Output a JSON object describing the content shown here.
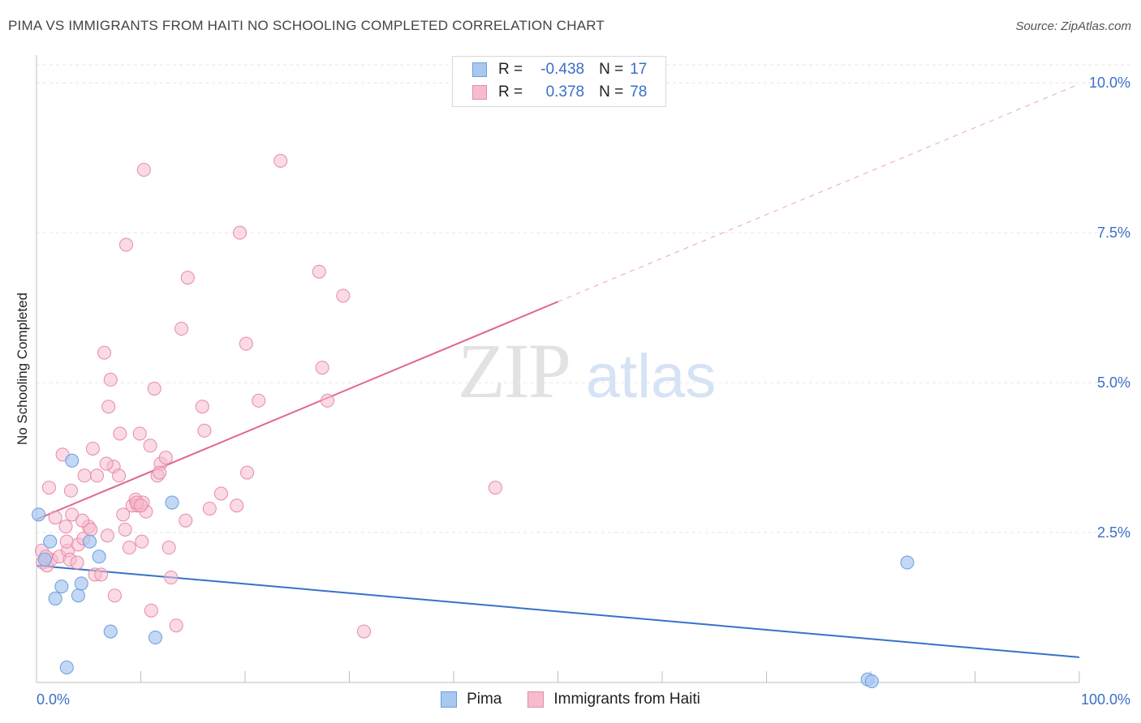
{
  "title": "PIMA VS IMMIGRANTS FROM HAITI NO SCHOOLING COMPLETED CORRELATION CHART",
  "source": "Source: ZipAtlas.com",
  "watermark": {
    "zip": "ZIP",
    "atlas": "atlas"
  },
  "colors": {
    "pima_fill": "#a9c8f0",
    "pima_stroke": "#6a9de0",
    "pima_line": "#3572c9",
    "haiti_fill": "#f6bccd",
    "haiti_stroke": "#e88aa6",
    "haiti_line": "#e06890",
    "grid": "#e6e6e6",
    "tick_label": "#3a6fc9"
  },
  "legend_top": {
    "rows": [
      {
        "r_label": "R =",
        "r_value": "-0.438",
        "n_label": "N =",
        "n_value": "17"
      },
      {
        "r_label": "R =",
        "r_value": "0.378",
        "n_label": "N =",
        "n_value": "78"
      }
    ]
  },
  "chart_data": {
    "type": "scatter",
    "xlabel": "",
    "ylabel": "No Schooling Completed",
    "xlim": [
      0,
      100
    ],
    "ylim": [
      0,
      10.3
    ],
    "x_tick_labels": [
      "0.0%",
      "100.0%"
    ],
    "y_ticks": [
      2.5,
      5.0,
      7.5,
      10.0
    ],
    "y_tick_labels": [
      "2.5%",
      "5.0%",
      "7.5%",
      "10.0%"
    ],
    "grid": "horizontal dashed",
    "legend_placement": "bottom",
    "series": [
      {
        "name": "Pima",
        "points": [
          [
            0.2,
            2.8
          ],
          [
            1.3,
            2.35
          ],
          [
            0.8,
            2.05
          ],
          [
            3.4,
            3.7
          ],
          [
            5.1,
            2.35
          ],
          [
            6.0,
            2.1
          ],
          [
            13.0,
            3.0
          ],
          [
            1.8,
            1.4
          ],
          [
            2.4,
            1.6
          ],
          [
            4.0,
            1.45
          ],
          [
            4.3,
            1.65
          ],
          [
            7.1,
            0.85
          ],
          [
            11.4,
            0.75
          ],
          [
            2.9,
            0.25
          ],
          [
            83.5,
            2.0
          ],
          [
            79.7,
            0.05
          ],
          [
            80.1,
            0.02
          ]
        ],
        "trend": {
          "x0": 0,
          "y0": 1.95,
          "x1": 100,
          "y1": 0.42
        }
      },
      {
        "name": "Immigrants from Haiti",
        "points": [
          [
            0.5,
            2.2
          ],
          [
            0.6,
            2.0
          ],
          [
            1.0,
            1.95
          ],
          [
            1.4,
            2.05
          ],
          [
            0.9,
            2.1
          ],
          [
            1.8,
            2.75
          ],
          [
            2.2,
            2.1
          ],
          [
            2.5,
            3.8
          ],
          [
            1.2,
            3.25
          ],
          [
            3.3,
            3.2
          ],
          [
            2.8,
            2.6
          ],
          [
            3.4,
            2.8
          ],
          [
            3.0,
            2.2
          ],
          [
            2.9,
            2.35
          ],
          [
            3.2,
            2.05
          ],
          [
            4.0,
            2.3
          ],
          [
            3.9,
            2.0
          ],
          [
            4.5,
            2.4
          ],
          [
            5.0,
            2.6
          ],
          [
            4.6,
            3.45
          ],
          [
            5.4,
            3.9
          ],
          [
            5.8,
            3.45
          ],
          [
            5.2,
            2.55
          ],
          [
            5.6,
            1.8
          ],
          [
            6.2,
            1.8
          ],
          [
            6.8,
            2.45
          ],
          [
            6.5,
            5.5
          ],
          [
            7.1,
            5.05
          ],
          [
            7.4,
            3.6
          ],
          [
            7.9,
            3.45
          ],
          [
            6.7,
            3.65
          ],
          [
            6.9,
            4.6
          ],
          [
            8.0,
            4.15
          ],
          [
            8.3,
            2.8
          ],
          [
            8.5,
            2.55
          ],
          [
            8.9,
            2.25
          ],
          [
            9.2,
            2.95
          ],
          [
            9.5,
            3.05
          ],
          [
            9.7,
            2.95
          ],
          [
            10.1,
            2.35
          ],
          [
            9.9,
            4.15
          ],
          [
            10.5,
            2.85
          ],
          [
            10.2,
            3.0
          ],
          [
            10.9,
            3.95
          ],
          [
            11.3,
            4.9
          ],
          [
            11.6,
            3.45
          ],
          [
            11.9,
            3.65
          ],
          [
            12.4,
            3.75
          ],
          [
            12.7,
            2.25
          ],
          [
            12.9,
            1.75
          ],
          [
            10.3,
            8.55
          ],
          [
            8.6,
            7.3
          ],
          [
            11.0,
            1.2
          ],
          [
            13.4,
            0.95
          ],
          [
            13.9,
            5.9
          ],
          [
            14.5,
            6.75
          ],
          [
            14.3,
            2.7
          ],
          [
            15.9,
            4.6
          ],
          [
            16.1,
            4.2
          ],
          [
            16.6,
            2.9
          ],
          [
            17.7,
            3.15
          ],
          [
            19.2,
            2.95
          ],
          [
            19.5,
            7.5
          ],
          [
            20.1,
            5.65
          ],
          [
            20.2,
            3.5
          ],
          [
            21.3,
            4.7
          ],
          [
            23.4,
            8.7
          ],
          [
            27.1,
            6.85
          ],
          [
            27.4,
            5.25
          ],
          [
            27.9,
            4.7
          ],
          [
            29.4,
            6.45
          ],
          [
            31.4,
            0.85
          ],
          [
            44.0,
            3.25
          ],
          [
            9.6,
            3.0
          ],
          [
            10.0,
            2.95
          ],
          [
            7.5,
            1.45
          ],
          [
            4.4,
            2.7
          ],
          [
            11.8,
            3.5
          ]
        ],
        "trend": {
          "x0": 0,
          "y0": 2.72,
          "x1": 50,
          "y1": 6.35
        },
        "trend_dashed": {
          "x0": 50,
          "y0": 6.35,
          "x1": 100,
          "y1": 9.98
        }
      }
    ]
  }
}
